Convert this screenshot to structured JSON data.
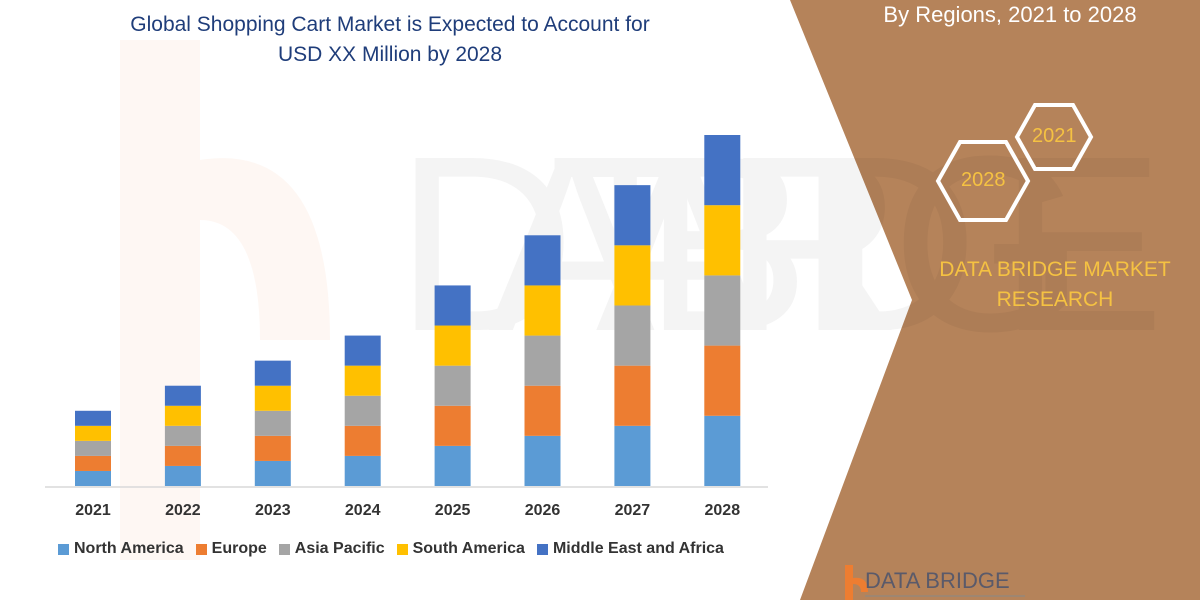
{
  "title": "Global Shopping Cart Market is Expected to Account for USD XX Million by 2028",
  "title_line1": "Global Shopping Cart Market is Expected to Account for",
  "title_line2": "USD XX Million by 2028",
  "side_panel": {
    "subtitle": "By Regions, 2021 to 2028",
    "hex_labels": [
      "2021",
      "2028"
    ],
    "brand": "DATA BRIDGE MARKET RESEARCH",
    "logo_text": "DATA BRIDGE",
    "background_color": "#b5835a",
    "accent_color": "#f5c242"
  },
  "chart_data": {
    "type": "bar",
    "stacked": true,
    "categories": [
      "2021",
      "2022",
      "2023",
      "2024",
      "2025",
      "2026",
      "2027",
      "2028"
    ],
    "series": [
      {
        "name": "North America",
        "color": "#5b9bd5",
        "values": [
          15,
          20,
          25,
          30,
          40,
          50,
          60,
          70
        ]
      },
      {
        "name": "Europe",
        "color": "#ed7d31",
        "values": [
          15,
          20,
          25,
          30,
          40,
          50,
          60,
          70
        ]
      },
      {
        "name": "Asia Pacific",
        "color": "#a5a5a5",
        "values": [
          15,
          20,
          25,
          30,
          40,
          50,
          60,
          70
        ]
      },
      {
        "name": "South America",
        "color": "#ffc000",
        "values": [
          15,
          20,
          25,
          30,
          40,
          50,
          60,
          70
        ]
      },
      {
        "name": "Middle East and Africa",
        "color": "#4472c4",
        "values": [
          15,
          20,
          25,
          30,
          40,
          50,
          60,
          70
        ]
      }
    ],
    "ylim": [
      0,
      360
    ],
    "y_axis_shown": false,
    "grid": false,
    "legend_position": "bottom"
  }
}
